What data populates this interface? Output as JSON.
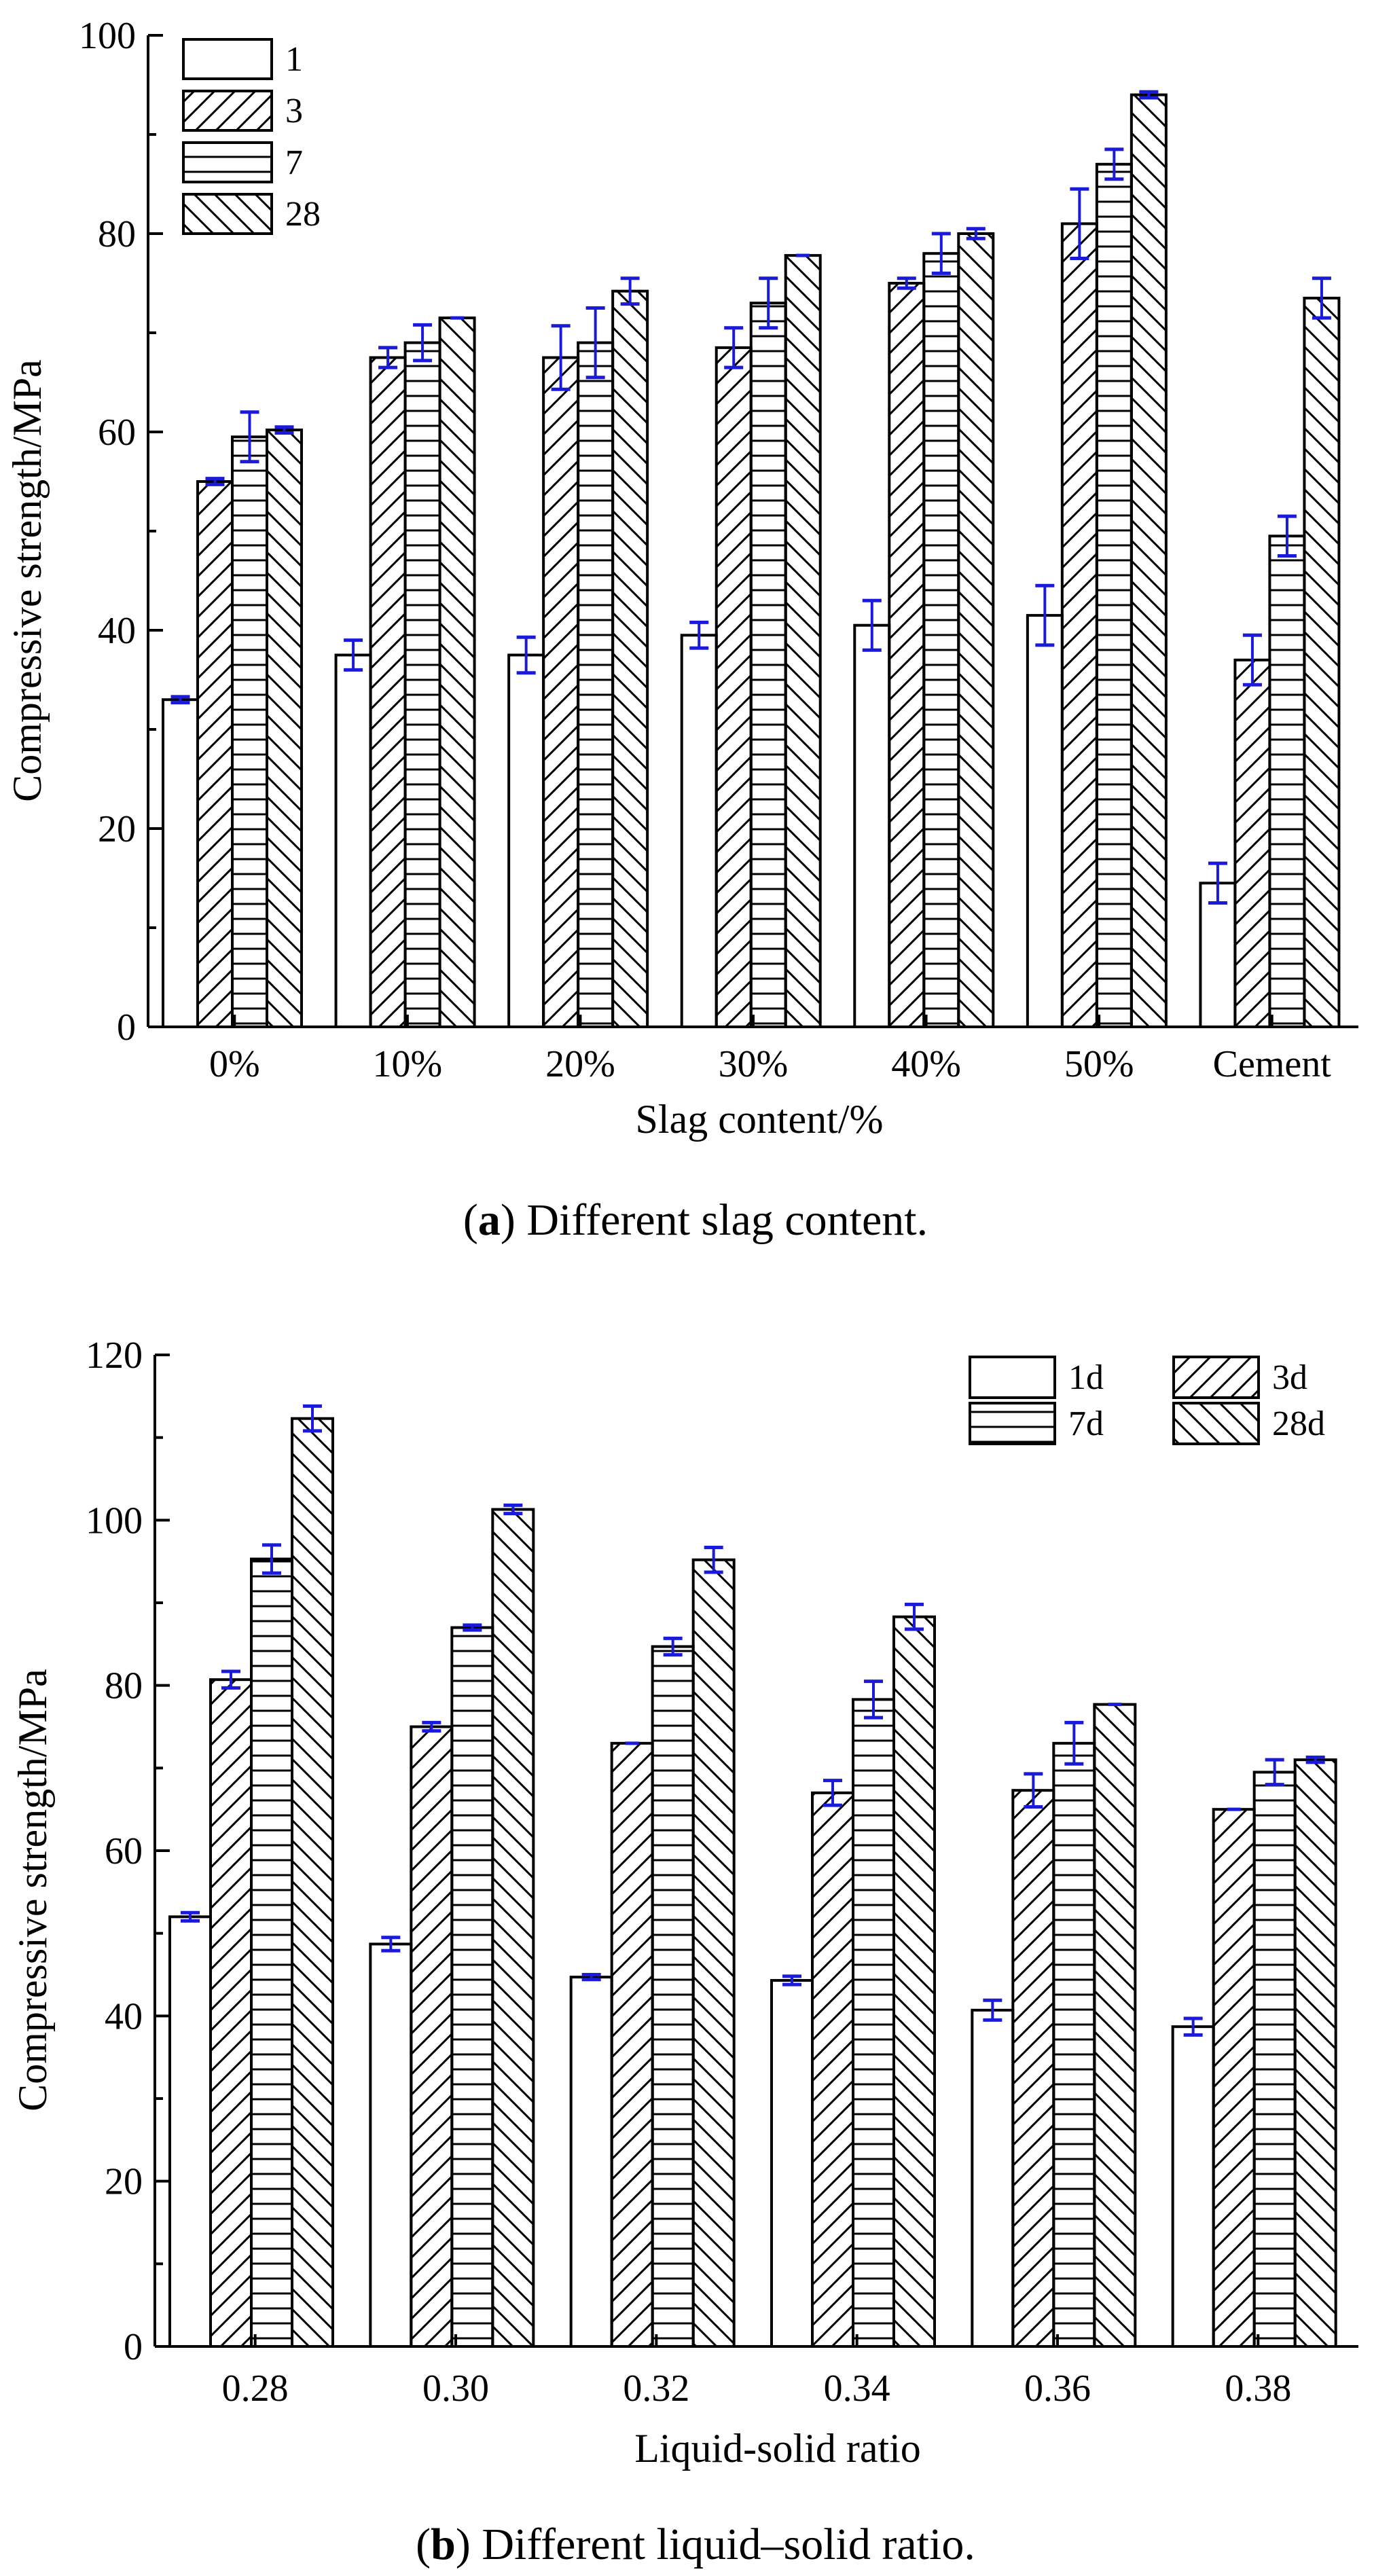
{
  "chart_data": [
    {
      "type": "bar",
      "caption_label": "a",
      "caption_text": ") Different slag content.",
      "caption_open": "(",
      "ylabel": "Compressive strength/MPa",
      "xlabel": "Slag content/%",
      "ylim": [
        0,
        100
      ],
      "yticks": [
        "0",
        "20",
        "40",
        "60",
        "80",
        "100"
      ],
      "categories": [
        "0%",
        "10%",
        "20%",
        "30%",
        "40%",
        "50%",
        "Cement"
      ],
      "legend_position": "top-left",
      "series": [
        {
          "name": "1",
          "pattern": "blank",
          "values": [
            33,
            37.5,
            37.5,
            39.5,
            40.5,
            41.5,
            14.5
          ],
          "errors": [
            0.3,
            1.5,
            1.8,
            1.3,
            2.5,
            3,
            2
          ]
        },
        {
          "name": "3",
          "pattern": "diag-fwd",
          "values": [
            55,
            67.5,
            67.5,
            68.5,
            75,
            81,
            37
          ],
          "errors": [
            0.3,
            1,
            3.2,
            2,
            0.5,
            3.5,
            2.5
          ]
        },
        {
          "name": "7",
          "pattern": "horizontal",
          "values": [
            59.5,
            69,
            69,
            73,
            78,
            87,
            49.5
          ],
          "errors": [
            2.5,
            1.8,
            3.5,
            2.5,
            2,
            1.5,
            2
          ]
        },
        {
          "name": "28",
          "pattern": "diag-back",
          "values": [
            60.2,
            71.5,
            74.2,
            77.8,
            80,
            94,
            73.5
          ],
          "errors": [
            0.3,
            0,
            1.3,
            0,
            0.5,
            0.3,
            2
          ]
        }
      ]
    },
    {
      "type": "bar",
      "caption_label": "b",
      "caption_text": ") Different liquid–solid ratio.",
      "caption_open": "(",
      "ylabel": "Compressive strength/MPa",
      "xlabel": "Liquid-solid ratio",
      "ylim": [
        0,
        120
      ],
      "yticks": [
        "0",
        "20",
        "40",
        "60",
        "80",
        "100",
        "120"
      ],
      "categories": [
        "0.28",
        "0.30",
        "0.32",
        "0.34",
        "0.36",
        "0.38"
      ],
      "legend_position": "top-right",
      "series": [
        {
          "name": "1d",
          "pattern": "blank",
          "values": [
            52,
            48.7,
            44.7,
            44.3,
            40.7,
            38.7
          ],
          "errors": [
            0.5,
            0.8,
            0.3,
            0.5,
            1.2,
            1
          ]
        },
        {
          "name": "3d",
          "pattern": "diag-fwd",
          "values": [
            80.7,
            75,
            73,
            67,
            67.3,
            65
          ],
          "errors": [
            1,
            0.5,
            0,
            1.5,
            2,
            0
          ]
        },
        {
          "name": "7d",
          "pattern": "horizontal",
          "values": [
            95.3,
            87,
            84.7,
            78.3,
            73,
            69.5
          ],
          "errors": [
            1.7,
            0.3,
            1,
            2.2,
            2.5,
            1.5
          ]
        },
        {
          "name": "28d",
          "pattern": "diag-back",
          "values": [
            112.3,
            101.3,
            95.2,
            88.3,
            77.7,
            71
          ],
          "errors": [
            1.5,
            0.5,
            1.5,
            1.5,
            0,
            0.3
          ]
        }
      ]
    }
  ]
}
